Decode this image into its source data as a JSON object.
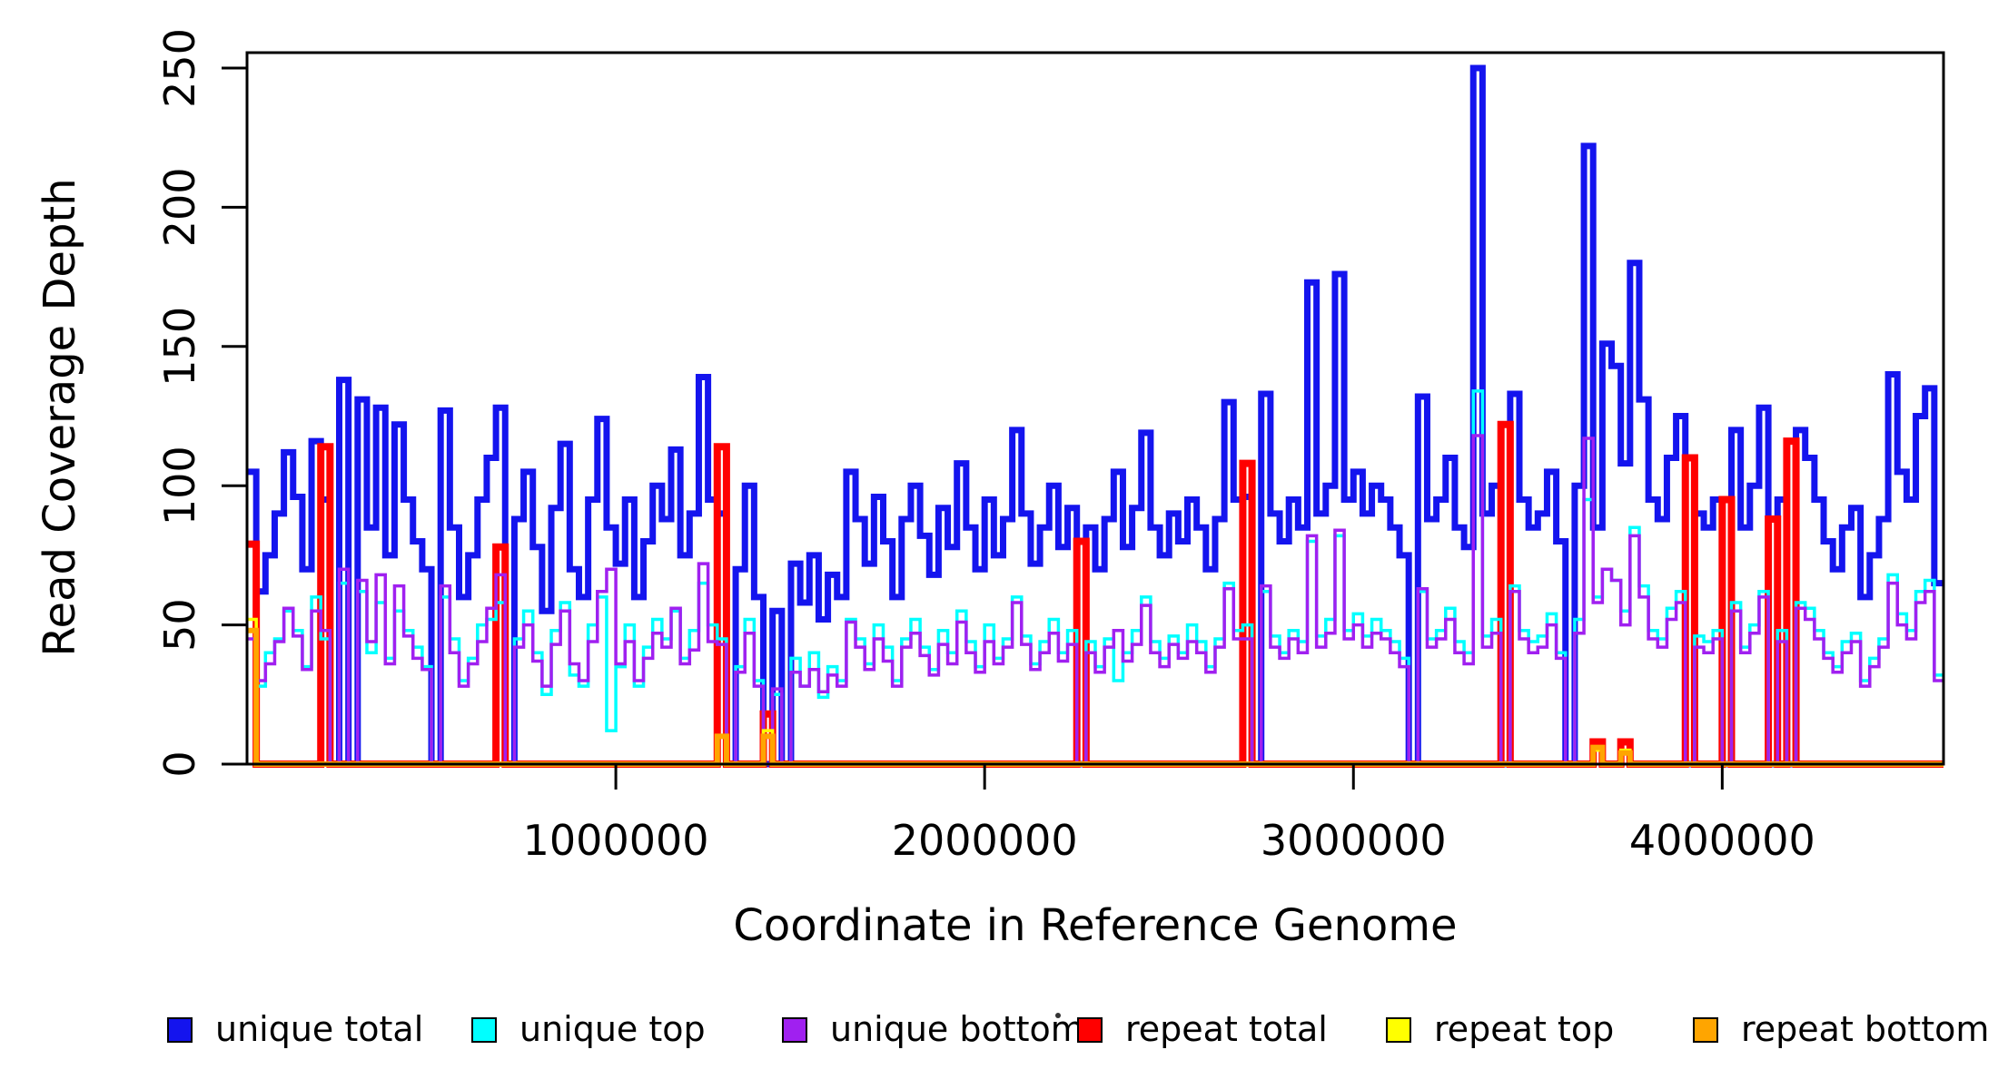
{
  "figure": {
    "background": "#FFFFFF",
    "border_color": "#000000"
  },
  "axes": {
    "x": {
      "label": "Coordinate in Reference Genome",
      "range": [
        0,
        4600000
      ],
      "ticks": [
        1000000,
        2000000,
        3000000,
        4000000
      ],
      "tick_labels": [
        "1000000",
        "2000000",
        "3000000",
        "4000000"
      ]
    },
    "y": {
      "label": "Read Coverage Depth",
      "range": [
        0,
        250
      ],
      "ticks": [
        0,
        50,
        100,
        150,
        200,
        250
      ],
      "tick_labels": [
        "0",
        "50",
        "100",
        "150",
        "200",
        "250"
      ]
    }
  },
  "legend": {
    "items": [
      {
        "label": "unique total",
        "color": "#1414EE"
      },
      {
        "label": "unique top",
        "color": "#00FFFF"
      },
      {
        "label": "unique bottom",
        "color": "#A020F0"
      },
      {
        "label": "repeat total",
        "color": "#FF0000"
      },
      {
        "label": "repeat top",
        "color": "#FFFF00"
      },
      {
        "label": "repeat bottom",
        "color": "#FFA500"
      }
    ]
  },
  "chart_data": {
    "type": "line",
    "subtype": "step-coverage",
    "title": "",
    "xlabel": "Coordinate in Reference Genome",
    "ylabel": "Read Coverage Depth",
    "xlim": [
      0,
      4600000
    ],
    "ylim": [
      0,
      250
    ],
    "grid": false,
    "legend_position": "bottom",
    "n_bins": 184,
    "bin_size_bp": 25000,
    "x_start": 0,
    "series": [
      {
        "name": "unique total",
        "color": "#1414EE",
        "values": [
          105,
          62,
          75,
          90,
          112,
          96,
          70,
          116,
          95,
          0,
          138,
          0,
          131,
          85,
          128,
          75,
          122,
          95,
          80,
          70,
          0,
          127,
          85,
          60,
          75,
          95,
          110,
          128,
          0,
          88,
          105,
          78,
          55,
          92,
          115,
          70,
          60,
          95,
          124,
          85,
          72,
          95,
          60,
          80,
          100,
          88,
          113,
          75,
          90,
          139,
          95,
          90,
          0,
          70,
          100,
          60,
          0,
          55,
          0,
          72,
          58,
          75,
          52,
          68,
          60,
          105,
          88,
          72,
          96,
          80,
          60,
          88,
          100,
          82,
          68,
          92,
          78,
          108,
          85,
          70,
          95,
          75,
          88,
          120,
          90,
          72,
          85,
          100,
          78,
          92,
          0,
          85,
          70,
          88,
          105,
          78,
          92,
          119,
          85,
          75,
          90,
          80,
          95,
          85,
          70,
          88,
          130,
          95,
          96,
          0,
          133,
          90,
          80,
          95,
          85,
          173,
          90,
          100,
          176,
          95,
          105,
          90,
          100,
          95,
          85,
          75,
          0,
          132,
          88,
          95,
          110,
          85,
          78,
          250,
          90,
          100,
          0,
          133,
          95,
          85,
          90,
          105,
          80,
          0,
          100,
          222,
          85,
          151,
          143,
          108,
          180,
          131,
          95,
          88,
          110,
          125,
          0,
          90,
          85,
          95,
          0,
          120,
          85,
          100,
          128,
          0,
          95,
          0,
          120,
          110,
          95,
          80,
          70,
          85,
          92,
          60,
          75,
          88,
          140,
          105,
          95,
          125,
          135,
          65
        ]
      },
      {
        "name": "unique top",
        "color": "#00FFFF",
        "values": [
          48,
          28,
          40,
          45,
          55,
          48,
          35,
          60,
          45,
          0,
          65,
          0,
          62,
          40,
          58,
          38,
          55,
          48,
          42,
          35,
          0,
          60,
          45,
          30,
          38,
          50,
          52,
          58,
          0,
          45,
          55,
          40,
          25,
          48,
          58,
          32,
          28,
          50,
          60,
          12,
          35,
          50,
          28,
          42,
          52,
          45,
          55,
          38,
          48,
          65,
          50,
          45,
          0,
          35,
          52,
          30,
          0,
          25,
          0,
          38,
          28,
          40,
          24,
          35,
          30,
          52,
          45,
          36,
          50,
          42,
          30,
          45,
          52,
          42,
          34,
          48,
          40,
          55,
          44,
          35,
          50,
          38,
          45,
          60,
          46,
          36,
          44,
          52,
          40,
          48,
          0,
          44,
          35,
          45,
          30,
          40,
          48,
          60,
          44,
          38,
          46,
          40,
          50,
          44,
          35,
          45,
          65,
          48,
          50,
          0,
          62,
          46,
          40,
          48,
          44,
          80,
          46,
          52,
          82,
          48,
          54,
          46,
          52,
          48,
          44,
          38,
          0,
          62,
          45,
          48,
          56,
          44,
          40,
          134,
          46,
          52,
          0,
          64,
          48,
          44,
          46,
          54,
          40,
          0,
          52,
          95,
          60,
          70,
          66,
          55,
          85,
          64,
          48,
          45,
          56,
          62,
          0,
          46,
          44,
          48,
          0,
          58,
          42,
          50,
          62,
          0,
          48,
          0,
          58,
          56,
          48,
          40,
          35,
          44,
          47,
          30,
          38,
          45,
          68,
          54,
          48,
          62,
          66,
          32
        ]
      },
      {
        "name": "unique bottom",
        "color": "#A020F0",
        "values": [
          45,
          30,
          36,
          44,
          56,
          46,
          34,
          55,
          48,
          0,
          70,
          0,
          66,
          44,
          68,
          36,
          64,
          46,
          38,
          34,
          0,
          64,
          40,
          28,
          36,
          44,
          56,
          68,
          0,
          42,
          50,
          37,
          28,
          43,
          55,
          36,
          30,
          44,
          62,
          70,
          36,
          44,
          30,
          38,
          47,
          42,
          56,
          36,
          41,
          72,
          44,
          43,
          0,
          33,
          47,
          28,
          0,
          27,
          0,
          33,
          28,
          34,
          26,
          32,
          28,
          51,
          42,
          34,
          45,
          37,
          28,
          42,
          47,
          39,
          32,
          43,
          36,
          51,
          40,
          33,
          44,
          36,
          42,
          58,
          43,
          34,
          40,
          47,
          37,
          43,
          0,
          40,
          33,
          42,
          48,
          37,
          43,
          57,
          40,
          35,
          43,
          38,
          44,
          40,
          33,
          42,
          63,
          45,
          45,
          0,
          64,
          42,
          38,
          45,
          40,
          82,
          42,
          47,
          84,
          45,
          50,
          42,
          47,
          45,
          40,
          35,
          0,
          63,
          42,
          45,
          52,
          40,
          36,
          118,
          42,
          47,
          0,
          62,
          45,
          40,
          42,
          50,
          38,
          0,
          47,
          117,
          58,
          70,
          66,
          50,
          82,
          60,
          45,
          42,
          52,
          58,
          0,
          42,
          40,
          45,
          0,
          55,
          40,
          47,
          60,
          0,
          44,
          0,
          56,
          52,
          45,
          38,
          33,
          40,
          44,
          28,
          35,
          42,
          65,
          50,
          45,
          58,
          62,
          30
        ]
      },
      {
        "name": "repeat total",
        "color": "#FF0000",
        "baseline": 0,
        "spikes": [
          {
            "bin": 0,
            "value": 79
          },
          {
            "bin": 8,
            "value": 114
          },
          {
            "bin": 27,
            "value": 78
          },
          {
            "bin": 51,
            "value": 114
          },
          {
            "bin": 56,
            "value": 18
          },
          {
            "bin": 90,
            "value": 80
          },
          {
            "bin": 108,
            "value": 108
          },
          {
            "bin": 136,
            "value": 122
          },
          {
            "bin": 146,
            "value": 8
          },
          {
            "bin": 149,
            "value": 8
          },
          {
            "bin": 156,
            "value": 110
          },
          {
            "bin": 160,
            "value": 95
          },
          {
            "bin": 165,
            "value": 88
          },
          {
            "bin": 167,
            "value": 116
          }
        ]
      },
      {
        "name": "repeat top",
        "color": "#FFFF00",
        "baseline": 0,
        "spikes": [
          {
            "bin": 0,
            "value": 52
          },
          {
            "bin": 56,
            "value": 12
          },
          {
            "bin": 146,
            "value": 5
          },
          {
            "bin": 149,
            "value": 5
          }
        ]
      },
      {
        "name": "repeat bottom",
        "color": "#FFA500",
        "baseline": 0,
        "spikes": [
          {
            "bin": 0,
            "value": 48
          },
          {
            "bin": 51,
            "value": 10
          },
          {
            "bin": 56,
            "value": 10
          },
          {
            "bin": 146,
            "value": 6
          },
          {
            "bin": 149,
            "value": 4
          }
        ]
      }
    ]
  }
}
